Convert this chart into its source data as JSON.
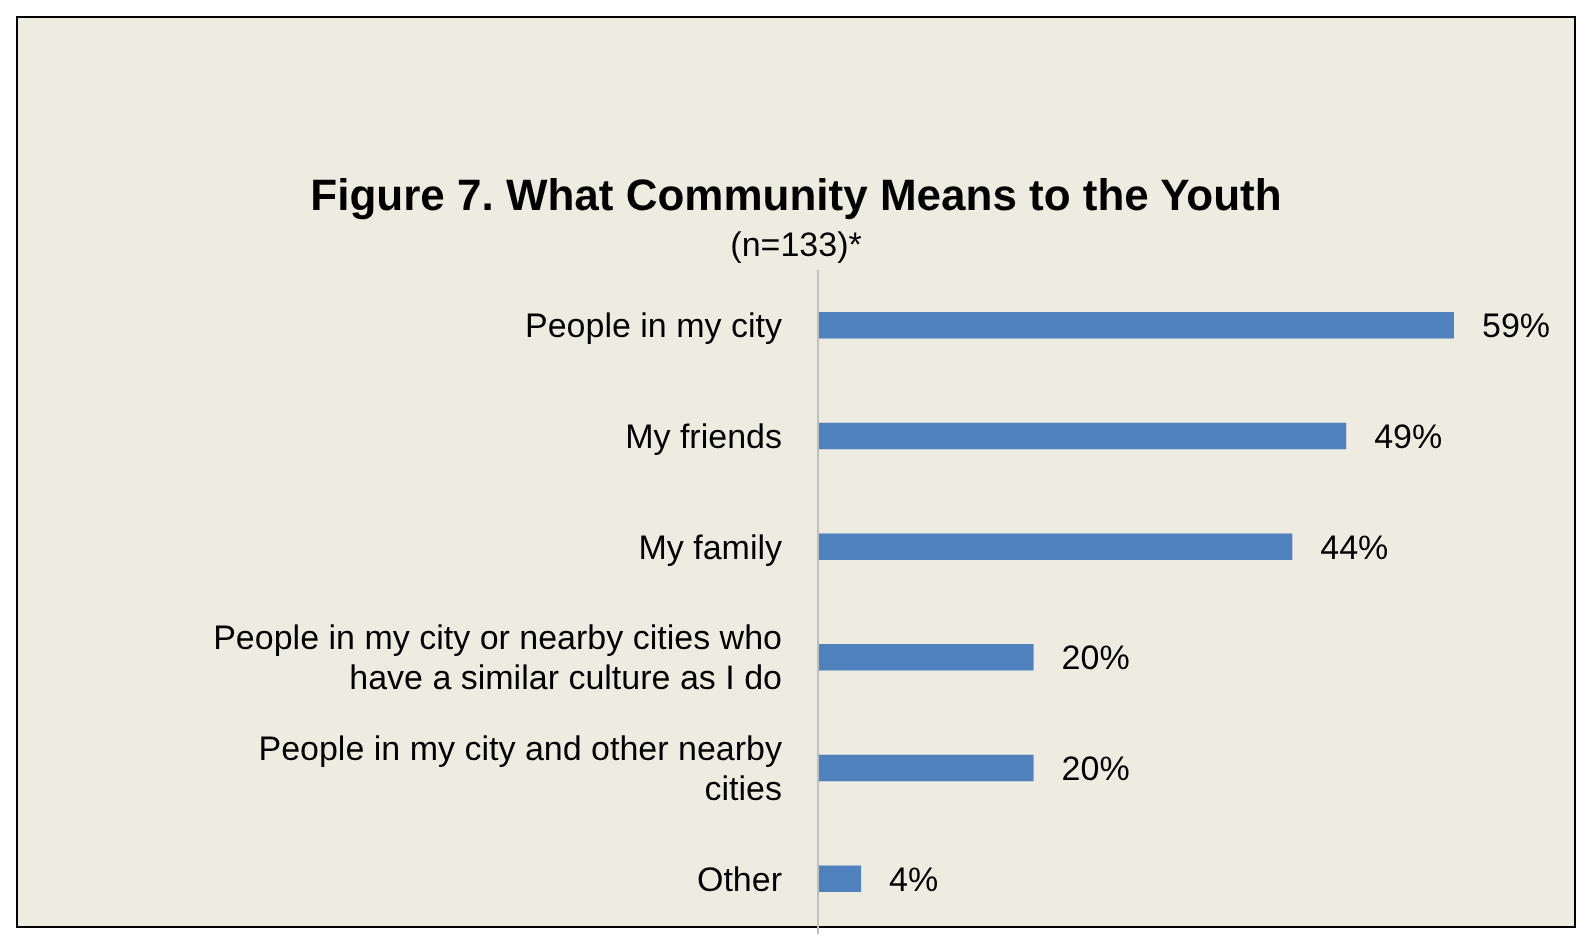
{
  "chart_data": {
    "type": "bar",
    "orientation": "horizontal",
    "title": "Figure 7. What Community Means to the Youth",
    "subtitle": "(n=133)*",
    "categories": [
      "People in my city",
      "My friends",
      "My family",
      "People in my city or nearby cities who have a similar culture as I do",
      "People in my city and other nearby cities",
      "Other"
    ],
    "values": [
      59,
      49,
      44,
      20,
      20,
      4
    ],
    "value_labels": [
      "59%",
      "49%",
      "44%",
      "20%",
      "20%",
      "4%"
    ],
    "color": "#4f81bd",
    "tick_labels": "y"
  }
}
